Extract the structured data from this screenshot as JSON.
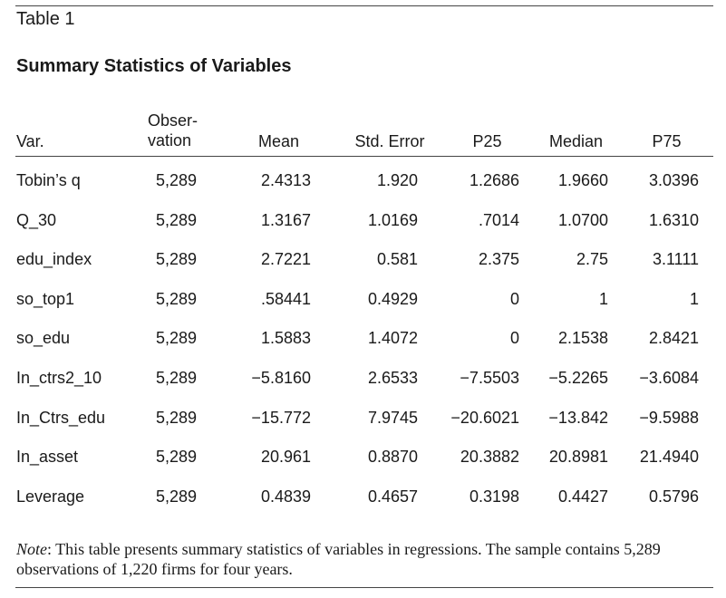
{
  "caption": "Table 1",
  "title": "Summary Statistics of Variables",
  "headers": {
    "var": "Var.",
    "obs": "Obser-\nvation",
    "mean": "Mean",
    "std": "Std. Error",
    "p25": "P25",
    "median": "Median",
    "p75": "P75"
  },
  "rows": [
    {
      "name": "Tobin’s q",
      "obs": "5,289",
      "mean": "2.4313",
      "std": "1.920",
      "p25": "1.2686",
      "median": "1.9660",
      "p75": "3.0396"
    },
    {
      "name": "Q_30",
      "obs": "5,289",
      "mean": "1.3167",
      "std": "1.0169",
      "p25": ".7014",
      "median": "1.0700",
      "p75": "1.6310"
    },
    {
      "name": "edu_index",
      "obs": "5,289",
      "mean": "2.7221",
      "std": "0.581",
      "p25": "2.375",
      "median": "2.75",
      "p75": "3.1111"
    },
    {
      "name": "so_top1",
      "obs": "5,289",
      "mean": ".58441",
      "std": "0.4929",
      "p25": "0",
      "median": "1",
      "p75": "1"
    },
    {
      "name": "so_edu",
      "obs": "5,289",
      "mean": "1.5883",
      "std": "1.4072",
      "p25": "0",
      "median": "2.1538",
      "p75": "2.8421"
    },
    {
      "name": "In_ctrs2_10",
      "obs": "5,289",
      "mean": "−5.8160",
      "std": "2.6533",
      "p25": "−7.5503",
      "median": "−5.2265",
      "p75": "−3.6084"
    },
    {
      "name": "In_Ctrs_edu",
      "obs": "5,289",
      "mean": "−15.772",
      "std": "7.9745",
      "p25": "−20.6021",
      "median": "−13.842",
      "p75": "−9.5988"
    },
    {
      "name": "In_asset",
      "obs": "5,289",
      "mean": "20.961",
      "std": "0.8870",
      "p25": "20.3882",
      "median": "20.8981",
      "p75": "21.4940"
    },
    {
      "name": "Leverage",
      "obs": "5,289",
      "mean": "0.4839",
      "std": "0.4657",
      "p25": "0.3198",
      "median": "0.4427",
      "p75": "0.5796"
    }
  ],
  "note": {
    "label": "Note",
    "text": ": This table presents summary statistics of variables in regressions. The sample contains 5,289 observations of 1,220 firms for four years."
  }
}
